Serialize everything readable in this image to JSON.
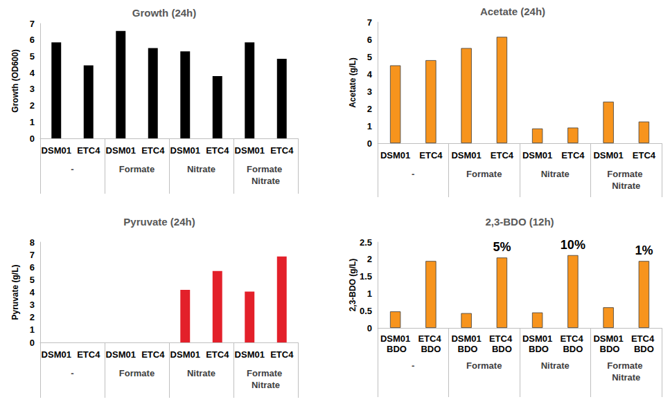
{
  "chart_data": [
    {
      "type": "bar",
      "title": "Growth (24h)",
      "y_label": "Growth (OD600)",
      "categories": [
        "DSM01",
        "ETC4",
        "DSM01",
        "ETC4",
        "DSM01",
        "ETC4",
        "DSM01",
        "ETC4"
      ],
      "groups": [
        "-",
        "Formate",
        "Nitrate",
        "Formate Nitrate"
      ],
      "values": [
        5.85,
        4.45,
        6.55,
        5.5,
        5.3,
        3.8,
        5.85,
        4.85
      ],
      "color": "#000000",
      "ylim": [
        0,
        7
      ],
      "yticks": [
        0,
        1,
        2,
        3,
        4,
        5,
        6,
        7
      ],
      "grid": false
    },
    {
      "type": "bar",
      "title": "Acetate (24h)",
      "y_label": "Acetate (g/L)",
      "categories": [
        "DSM01",
        "ETC4",
        "DSM01",
        "ETC4",
        "DSM01",
        "ETC4",
        "DSM01",
        "ETC4"
      ],
      "groups": [
        "-",
        "Formate",
        "Nitrate",
        "Formate Nitrate"
      ],
      "values": [
        4.5,
        4.8,
        5.5,
        6.15,
        0.85,
        0.9,
        2.4,
        1.25
      ],
      "color": "#F7941D",
      "ylim": [
        0,
        7
      ],
      "yticks": [
        0,
        1,
        2,
        3,
        4,
        5,
        6,
        7
      ],
      "grid": false
    },
    {
      "type": "bar",
      "title": "Pyruvate (24h)",
      "y_label": "Pyruvate (g/L)",
      "categories": [
        "DSM01",
        "ETC4",
        "DSM01",
        "ETC4",
        "DSM01",
        "ETC4",
        "DSM01",
        "ETC4"
      ],
      "groups": [
        "-",
        "Formate",
        "Nitrate",
        "Formate Nitrate"
      ],
      "values": [
        0,
        0,
        0,
        0,
        4.2,
        5.7,
        4.05,
        6.85
      ],
      "color": "#E3202A",
      "ylim": [
        0,
        8
      ],
      "yticks": [
        0,
        1,
        2,
        3,
        4,
        5,
        6,
        7,
        8
      ],
      "grid": false
    },
    {
      "type": "bar",
      "title": "2,3-BDO (12h)",
      "y_label": "2,3-BDO (g/L)",
      "categories": [
        "DSM01 BDO",
        "ETC4 BDO",
        "DSM01 BDO",
        "ETC4 BDO",
        "DSM01 BDO",
        "ETC4 BDO",
        "DSM01 BDO",
        "ETC4 BDO"
      ],
      "groups": [
        "-",
        "Formate",
        "Nitrate",
        "Formate Nitrate"
      ],
      "values": [
        0.48,
        1.95,
        0.43,
        2.05,
        0.45,
        2.12,
        0.6,
        1.95
      ],
      "annotations": [
        {
          "text": "5%",
          "index": 3
        },
        {
          "text": "10%",
          "index": 5
        },
        {
          "text": "1%",
          "index": 7
        }
      ],
      "color": "#F7941D",
      "ylim": [
        0,
        2.5
      ],
      "yticks": [
        0,
        0.5,
        1,
        1.5,
        2,
        2.5
      ],
      "grid": false
    }
  ]
}
